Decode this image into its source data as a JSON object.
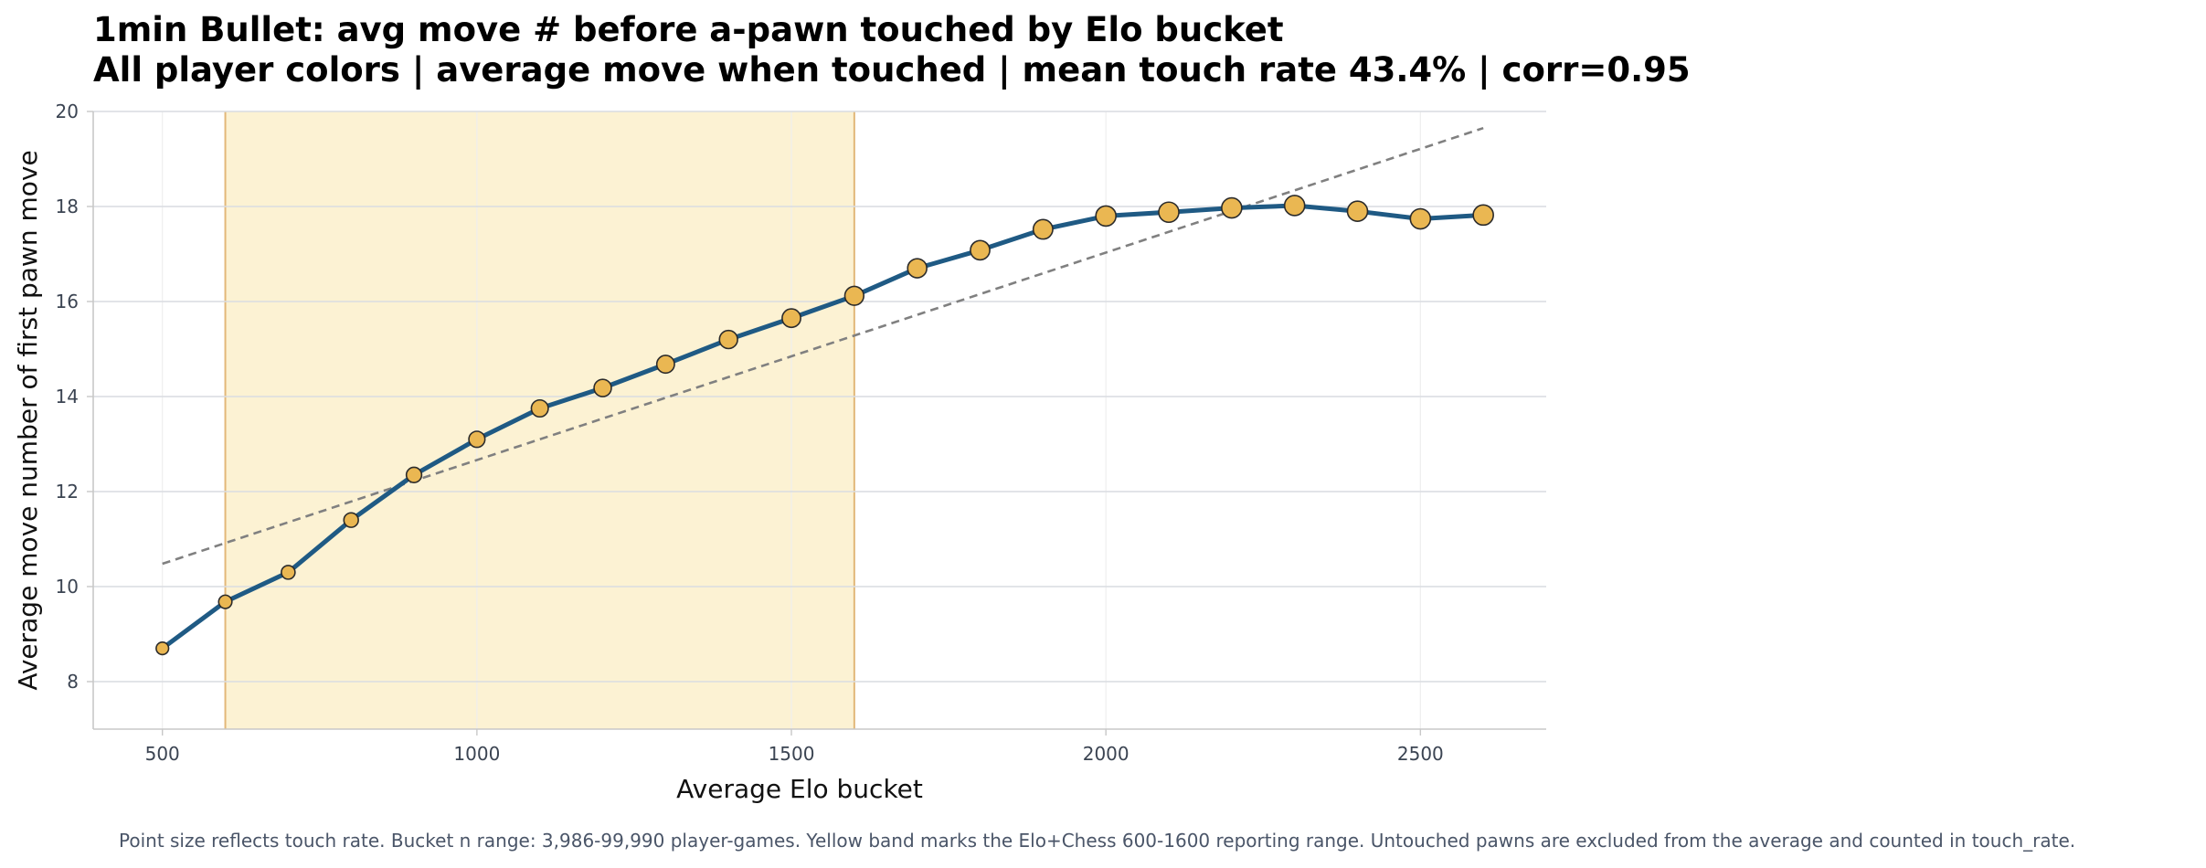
{
  "chart_data": {
    "type": "line",
    "title": "1min Bullet: avg move # before a-pawn touched by Elo bucket",
    "subtitle": "All player colors | average move when touched | mean touch rate 43.4% | corr=0.95",
    "xlabel": "Average Elo bucket",
    "ylabel": "Average move number of first pawn move",
    "xlim": [
      390,
      2700
    ],
    "ylim": [
      7,
      20
    ],
    "x_ticks": [
      500,
      1000,
      1500,
      2000,
      2500
    ],
    "y_ticks": [
      8,
      10,
      12,
      14,
      16,
      18,
      20
    ],
    "grid": true,
    "legend": "none",
    "series": [
      {
        "x": [
          500,
          600,
          700,
          800,
          900,
          1000,
          1100,
          1200,
          1300,
          1400,
          1500,
          1600,
          1700,
          1800,
          1900,
          2000,
          2100,
          2200,
          2300,
          2400,
          2500,
          2600
        ],
        "values": [
          8.7,
          9.68,
          10.3,
          11.4,
          12.35,
          13.1,
          13.75,
          14.18,
          14.68,
          15.2,
          15.65,
          16.12,
          16.7,
          17.08,
          17.52,
          17.8,
          17.88,
          17.97,
          18.02,
          17.9,
          17.74,
          17.82
        ],
        "point_size_rel": [
          0.62,
          0.66,
          0.68,
          0.72,
          0.76,
          0.8,
          0.84,
          0.86,
          0.88,
          0.9,
          0.92,
          0.94,
          0.95,
          0.96,
          0.97,
          1.0,
          1.0,
          1.0,
          1.0,
          1.0,
          1.0,
          1.0
        ]
      }
    ],
    "trendline": {
      "x": [
        500,
        2600
      ],
      "values": [
        10.48,
        19.65
      ]
    },
    "band": {
      "x_start": 600,
      "x_end": 1600
    },
    "footnote": "Point size reflects touch rate. Bucket n range: 3,986-99,990 player-games. Yellow band marks the Elo+Chess 600-1600 reporting range. Untouched pawns are excluded from the average and counted in touch_rate.",
    "colors": {
      "line": "#1f5a84",
      "marker_fill": "#eab752",
      "marker_edge": "#2b2b2b",
      "band_fill": "#fcf2d3",
      "band_edge": "#e2b878",
      "trend": "#808080",
      "grid_major": "#d9dce1",
      "grid_minor": "#eeeeee",
      "axis": "#c8c8c8"
    }
  }
}
